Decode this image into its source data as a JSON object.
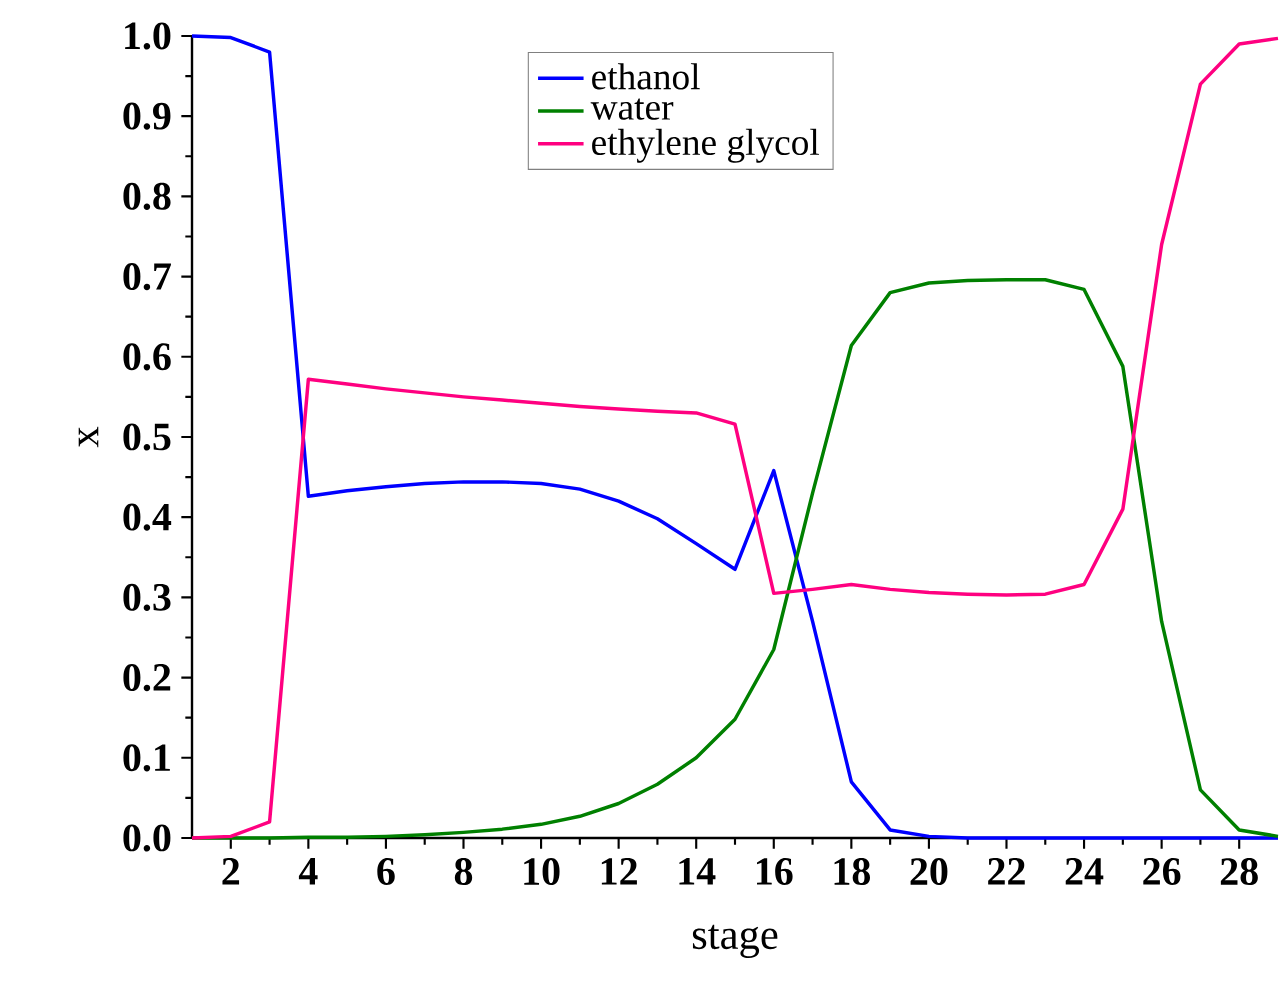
{
  "chart_data": {
    "type": "line",
    "xlabel": "stage",
    "ylabel": "x",
    "x": [
      1,
      2,
      3,
      4,
      5,
      6,
      7,
      8,
      9,
      10,
      11,
      12,
      13,
      14,
      15,
      16,
      17,
      18,
      19,
      20,
      21,
      22,
      23,
      24,
      25,
      26,
      27,
      28,
      29
    ],
    "series": [
      {
        "name": "ethanol",
        "color": "#0000ff",
        "values": [
          1.0,
          0.998,
          0.98,
          0.426,
          0.433,
          0.438,
          0.442,
          0.444,
          0.444,
          0.442,
          0.435,
          0.42,
          0.398,
          0.367,
          0.335,
          0.458,
          0.27,
          0.07,
          0.01,
          0.002,
          0,
          0,
          0,
          0,
          0,
          0,
          0,
          0,
          0
        ]
      },
      {
        "name": "water",
        "color": "#008000",
        "values": [
          0,
          0,
          0,
          0.001,
          0.001,
          0.002,
          0.004,
          0.007,
          0.011,
          0.017,
          0.027,
          0.043,
          0.067,
          0.1,
          0.148,
          0.235,
          0.43,
          0.614,
          0.68,
          0.692,
          0.695,
          0.696,
          0.696,
          0.684,
          0.588,
          0.27,
          0.06,
          0.01,
          0.002
        ]
      },
      {
        "name": "ethylene glycol",
        "color": "#ff0080",
        "values": [
          0,
          0.002,
          0.02,
          0.572,
          0.566,
          0.56,
          0.555,
          0.55,
          0.546,
          0.542,
          0.538,
          0.535,
          0.532,
          0.53,
          0.516,
          0.305,
          0.31,
          0.316,
          0.31,
          0.306,
          0.304,
          0.303,
          0.304,
          0.316,
          0.41,
          0.74,
          0.94,
          0.99,
          0.997
        ]
      }
    ],
    "xlim": [
      1,
      29
    ],
    "ylim": [
      0,
      1.0
    ],
    "xticks": [
      2,
      4,
      6,
      8,
      10,
      12,
      14,
      16,
      18,
      20,
      22,
      24,
      26,
      28
    ],
    "yticks": [
      {
        "value": 0,
        "label": "0.0"
      },
      {
        "value": 0.1,
        "label": "0.1"
      },
      {
        "value": 0.2,
        "label": "0.2"
      },
      {
        "value": 0.3,
        "label": "0.3"
      },
      {
        "value": 0.4,
        "label": "0.4"
      },
      {
        "value": 0.5,
        "label": "0.5"
      },
      {
        "value": 0.6,
        "label": "0.6"
      },
      {
        "value": 0.7,
        "label": "0.7"
      },
      {
        "value": 0.8,
        "label": "0.8"
      },
      {
        "value": 0.9,
        "label": "0.9"
      },
      {
        "value": 1.0,
        "label": "1.0"
      }
    ],
    "legend": "top",
    "grid": false,
    "marker": "none",
    "line_style": "solid"
  }
}
